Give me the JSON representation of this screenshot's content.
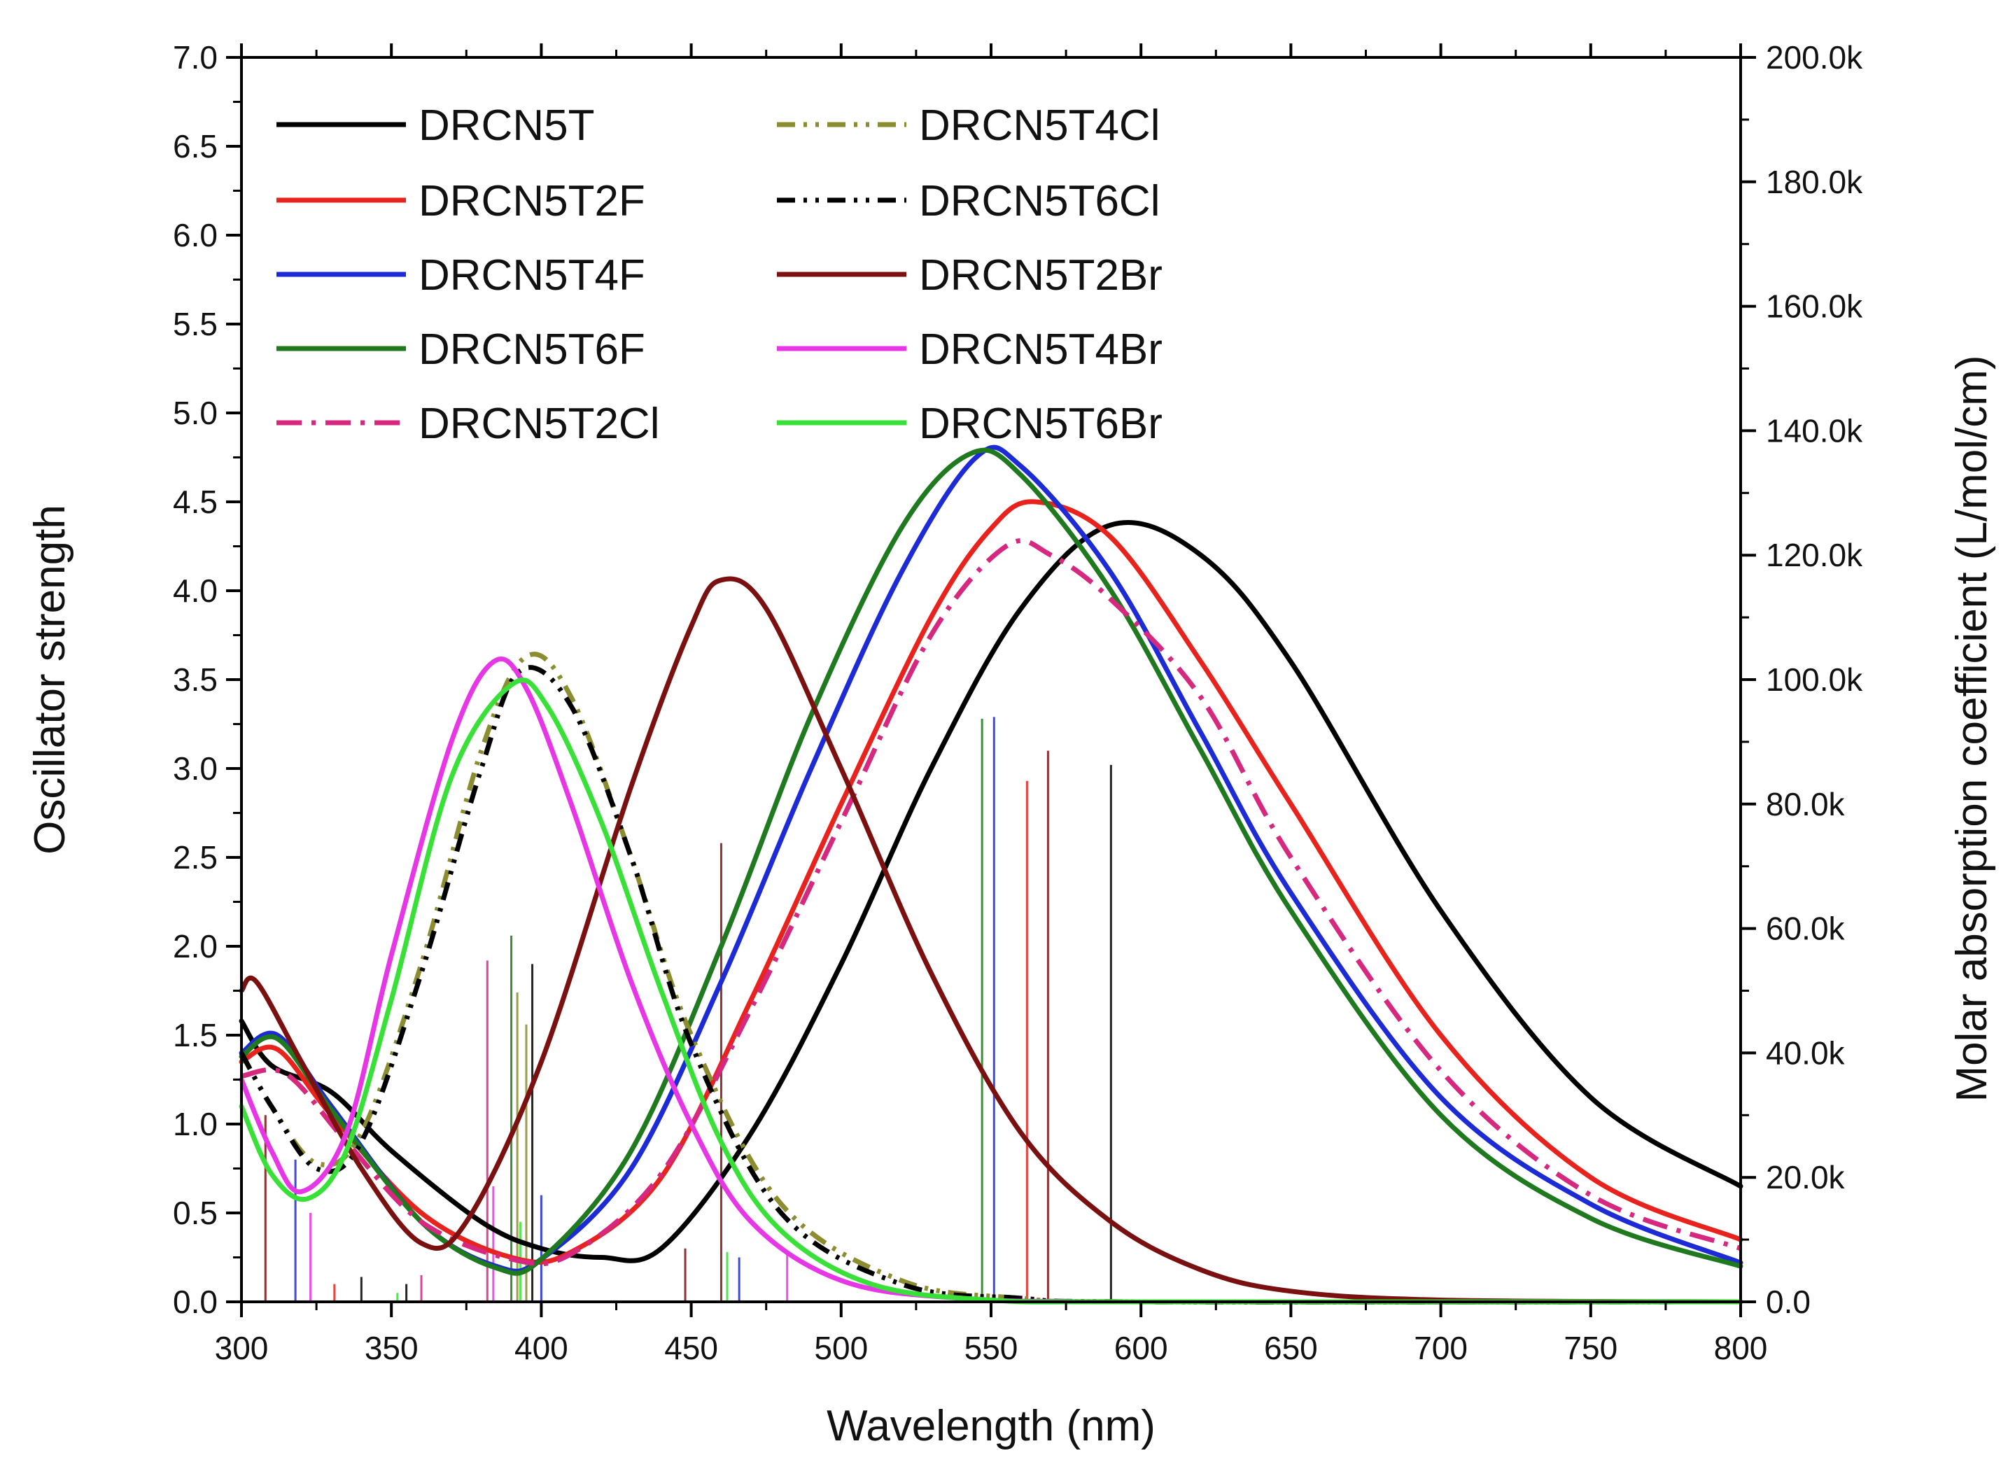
{
  "chart_data": {
    "type": "line",
    "x_label": "Wavelength (nm)",
    "y_label": "Oscillator strength",
    "y2_label": "Molar absorption coefficient (L/mol/cm)",
    "xlim": [
      300,
      800
    ],
    "ylim": [
      0,
      7
    ],
    "y2lim": [
      0,
      200000
    ],
    "x_ticks": [
      "300",
      "350",
      "400",
      "450",
      "500",
      "550",
      "600",
      "650",
      "700",
      "750",
      "800"
    ],
    "y_ticks": [
      "0.0",
      "0.5",
      "1.0",
      "1.5",
      "2.0",
      "2.5",
      "3.0",
      "3.5",
      "4.0",
      "4.5",
      "5.0",
      "5.5",
      "6.0",
      "6.5",
      "7.0"
    ],
    "y2_ticks": [
      "0.0",
      "20.0k",
      "40.0k",
      "60.0k",
      "80.0k",
      "100.0k",
      "120.0k",
      "140.0k",
      "160.0k",
      "180.0k",
      "200.0k"
    ],
    "legend_position": "top-left",
    "series": [
      {
        "name": "DRCN5T",
        "color": "#000000",
        "dash": "solid",
        "uv": {
          "x": 300,
          "bump": {
            "c": 312,
            "w": 25,
            "a": 1.0
          }
        },
        "low": {
          "c": 420,
          "w": 30,
          "a": 0.55
        },
        "main": {
          "peak": 590,
          "height": 4.37,
          "sigma": 75
        },
        "points": [
          [
            300,
            1.58
          ],
          [
            310,
            1.33
          ],
          [
            330,
            1.18
          ],
          [
            350,
            0.85
          ],
          [
            380,
            0.45
          ],
          [
            400,
            0.3
          ],
          [
            420,
            0.25
          ],
          [
            440,
            0.3
          ],
          [
            470,
            0.95
          ],
          [
            500,
            1.9
          ],
          [
            530,
            3.0
          ],
          [
            560,
            3.9
          ],
          [
            590,
            4.37
          ],
          [
            620,
            4.2
          ],
          [
            650,
            3.6
          ],
          [
            700,
            2.2
          ],
          [
            750,
            1.15
          ],
          [
            800,
            0.65
          ]
        ],
        "sticks": [
          [
            590,
            3.02
          ],
          [
            340,
            0.14
          ],
          [
            355,
            0.1
          ]
        ]
      },
      {
        "name": "DRCN5T2F",
        "color": "#e8231d",
        "dash": "solid",
        "points": [
          [
            300,
            1.35
          ],
          [
            312,
            1.42
          ],
          [
            330,
            1.05
          ],
          [
            360,
            0.5
          ],
          [
            390,
            0.25
          ],
          [
            410,
            0.28
          ],
          [
            440,
            0.7
          ],
          [
            470,
            1.7
          ],
          [
            500,
            2.8
          ],
          [
            530,
            3.85
          ],
          [
            550,
            4.35
          ],
          [
            565,
            4.5
          ],
          [
            590,
            4.3
          ],
          [
            620,
            3.6
          ],
          [
            650,
            2.8
          ],
          [
            700,
            1.5
          ],
          [
            750,
            0.7
          ],
          [
            800,
            0.35
          ]
        ],
        "sticks": [
          [
            562,
            2.93
          ],
          [
            331,
            0.1
          ]
        ]
      },
      {
        "name": "DRCN5T4F",
        "color": "#1c2bd6",
        "dash": "solid",
        "points": [
          [
            300,
            1.4
          ],
          [
            312,
            1.5
          ],
          [
            330,
            1.1
          ],
          [
            360,
            0.45
          ],
          [
            385,
            0.2
          ],
          [
            400,
            0.24
          ],
          [
            430,
            0.75
          ],
          [
            460,
            1.8
          ],
          [
            490,
            3.0
          ],
          [
            520,
            4.1
          ],
          [
            545,
            4.75
          ],
          [
            560,
            4.7
          ],
          [
            590,
            4.1
          ],
          [
            620,
            3.2
          ],
          [
            650,
            2.3
          ],
          [
            700,
            1.15
          ],
          [
            750,
            0.55
          ],
          [
            800,
            0.22
          ]
        ],
        "sticks": [
          [
            551,
            3.29
          ],
          [
            318,
            0.8
          ],
          [
            400,
            0.6
          ],
          [
            466,
            0.25
          ]
        ]
      },
      {
        "name": "DRCN5T6F",
        "color": "#1f7a1f",
        "dash": "solid",
        "points": [
          [
            300,
            1.38
          ],
          [
            312,
            1.48
          ],
          [
            330,
            1.08
          ],
          [
            360,
            0.45
          ],
          [
            385,
            0.19
          ],
          [
            400,
            0.24
          ],
          [
            430,
            0.85
          ],
          [
            460,
            2.0
          ],
          [
            490,
            3.3
          ],
          [
            520,
            4.35
          ],
          [
            543,
            4.77
          ],
          [
            560,
            4.65
          ],
          [
            590,
            4.0
          ],
          [
            620,
            3.1
          ],
          [
            650,
            2.2
          ],
          [
            700,
            1.05
          ],
          [
            750,
            0.47
          ],
          [
            800,
            0.2
          ]
        ],
        "sticks": [
          [
            547,
            3.28
          ],
          [
            390,
            2.06
          ]
        ]
      },
      {
        "name": "DRCN5T2Cl",
        "color": "#d6287f",
        "dash": "dashdot",
        "points": [
          [
            300,
            1.27
          ],
          [
            315,
            1.28
          ],
          [
            335,
            0.9
          ],
          [
            360,
            0.45
          ],
          [
            390,
            0.24
          ],
          [
            410,
            0.27
          ],
          [
            440,
            0.72
          ],
          [
            470,
            1.65
          ],
          [
            500,
            2.7
          ],
          [
            530,
            3.75
          ],
          [
            555,
            4.25
          ],
          [
            570,
            4.2
          ],
          [
            590,
            3.95
          ],
          [
            620,
            3.4
          ],
          [
            650,
            2.5
          ],
          [
            700,
            1.3
          ],
          [
            750,
            0.6
          ],
          [
            800,
            0.3
          ]
        ],
        "sticks": [
          [
            382,
            1.92
          ],
          [
            360,
            0.15
          ]
        ]
      },
      {
        "name": "DRCN5T4Cl",
        "color": "#8c8c30",
        "dash": "dashdotdot",
        "points": [
          [
            300,
            1.4
          ],
          [
            310,
            1.1
          ],
          [
            325,
            0.78
          ],
          [
            340,
            0.95
          ],
          [
            360,
            1.9
          ],
          [
            380,
            3.1
          ],
          [
            395,
            3.63
          ],
          [
            410,
            3.4
          ],
          [
            430,
            2.5
          ],
          [
            450,
            1.5
          ],
          [
            480,
            0.55
          ],
          [
            520,
            0.12
          ],
          [
            560,
            0.02
          ],
          [
            600,
            0.0
          ],
          [
            800,
            0.0
          ]
        ],
        "sticks": [
          [
            392,
            1.74
          ],
          [
            395,
            1.56
          ]
        ]
      },
      {
        "name": "DRCN5T6Cl",
        "color": "#000000",
        "dash": "dashdotdot",
        "points": [
          [
            300,
            1.4
          ],
          [
            310,
            1.1
          ],
          [
            325,
            0.75
          ],
          [
            340,
            0.9
          ],
          [
            360,
            1.85
          ],
          [
            380,
            3.0
          ],
          [
            393,
            3.55
          ],
          [
            410,
            3.35
          ],
          [
            430,
            2.5
          ],
          [
            450,
            1.45
          ],
          [
            480,
            0.5
          ],
          [
            520,
            0.1
          ],
          [
            560,
            0.02
          ],
          [
            600,
            0.0
          ],
          [
            800,
            0.0
          ]
        ],
        "sticks": [
          [
            397,
            1.9
          ]
        ]
      },
      {
        "name": "DRCN5T2Br",
        "color": "#7a1010",
        "dash": "solid",
        "points": [
          [
            300,
            1.75
          ],
          [
            305,
            1.8
          ],
          [
            320,
            1.35
          ],
          [
            340,
            0.75
          ],
          [
            360,
            0.33
          ],
          [
            375,
            0.45
          ],
          [
            400,
            1.35
          ],
          [
            430,
            2.9
          ],
          [
            450,
            3.8
          ],
          [
            460,
            4.06
          ],
          [
            475,
            3.9
          ],
          [
            500,
            3.0
          ],
          [
            530,
            1.85
          ],
          [
            560,
            0.95
          ],
          [
            590,
            0.45
          ],
          [
            620,
            0.18
          ],
          [
            650,
            0.06
          ],
          [
            700,
            0.01
          ],
          [
            800,
            0.0
          ]
        ],
        "sticks": [
          [
            460,
            2.58
          ],
          [
            569,
            3.1
          ],
          [
            308,
            1.05
          ],
          [
            448,
            0.3
          ]
        ]
      },
      {
        "name": "DRCN5T4Br",
        "color": "#e636e6",
        "dash": "solid",
        "points": [
          [
            300,
            1.25
          ],
          [
            310,
            0.85
          ],
          [
            320,
            0.62
          ],
          [
            335,
            0.95
          ],
          [
            350,
            1.95
          ],
          [
            370,
            3.15
          ],
          [
            384,
            3.6
          ],
          [
            395,
            3.45
          ],
          [
            410,
            2.8
          ],
          [
            430,
            1.8
          ],
          [
            450,
            1.0
          ],
          [
            470,
            0.45
          ],
          [
            500,
            0.12
          ],
          [
            540,
            0.02
          ],
          [
            600,
            0.0
          ],
          [
            800,
            0.0
          ]
        ],
        "sticks": [
          [
            384,
            0.65
          ],
          [
            482,
            0.28
          ],
          [
            323,
            0.5
          ]
        ]
      },
      {
        "name": "DRCN5T6Br",
        "color": "#38e038",
        "dash": "solid",
        "points": [
          [
            300,
            1.1
          ],
          [
            310,
            0.72
          ],
          [
            322,
            0.58
          ],
          [
            335,
            0.85
          ],
          [
            350,
            1.7
          ],
          [
            370,
            2.95
          ],
          [
            390,
            3.47
          ],
          [
            402,
            3.35
          ],
          [
            420,
            2.7
          ],
          [
            440,
            1.75
          ],
          [
            460,
            0.9
          ],
          [
            480,
            0.4
          ],
          [
            510,
            0.1
          ],
          [
            550,
            0.01
          ],
          [
            600,
            0.0
          ],
          [
            800,
            0.0
          ]
        ],
        "sticks": [
          [
            393,
            0.45
          ],
          [
            462,
            0.28
          ],
          [
            352,
            0.05
          ]
        ]
      }
    ]
  }
}
